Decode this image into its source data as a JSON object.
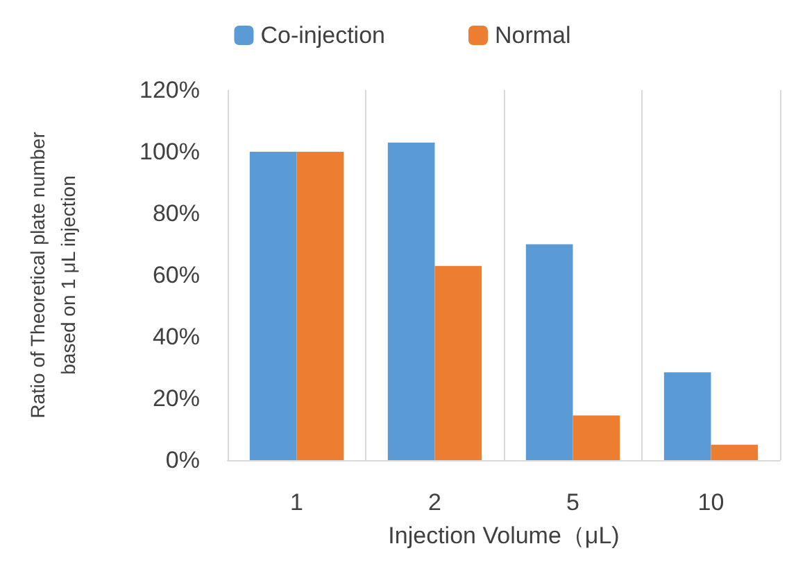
{
  "chart_data": {
    "type": "bar",
    "xlabel": "Injection Volume（μL)",
    "ylabel": "Ratio of Theoretical plate number\nbased on 1 μL injection",
    "categories": [
      "1",
      "2",
      "5",
      "10"
    ],
    "series": [
      {
        "name": "Co-injection",
        "color": "#5b9bd5",
        "values": [
          100,
          103,
          70,
          28.5
        ]
      },
      {
        "name": "Normal",
        "color": "#ed7d31",
        "values": [
          100,
          63,
          14.5,
          5
        ]
      }
    ],
    "ylim": [
      0,
      120
    ],
    "yticks": [
      {
        "value": 0,
        "label": "0%"
      },
      {
        "value": 20,
        "label": "20%"
      },
      {
        "value": 40,
        "label": "40%"
      },
      {
        "value": 60,
        "label": "60%"
      },
      {
        "value": 80,
        "label": "80%"
      },
      {
        "value": 100,
        "label": "100%"
      },
      {
        "value": 120,
        "label": "120%"
      }
    ],
    "grid": "x",
    "legend": "top"
  }
}
